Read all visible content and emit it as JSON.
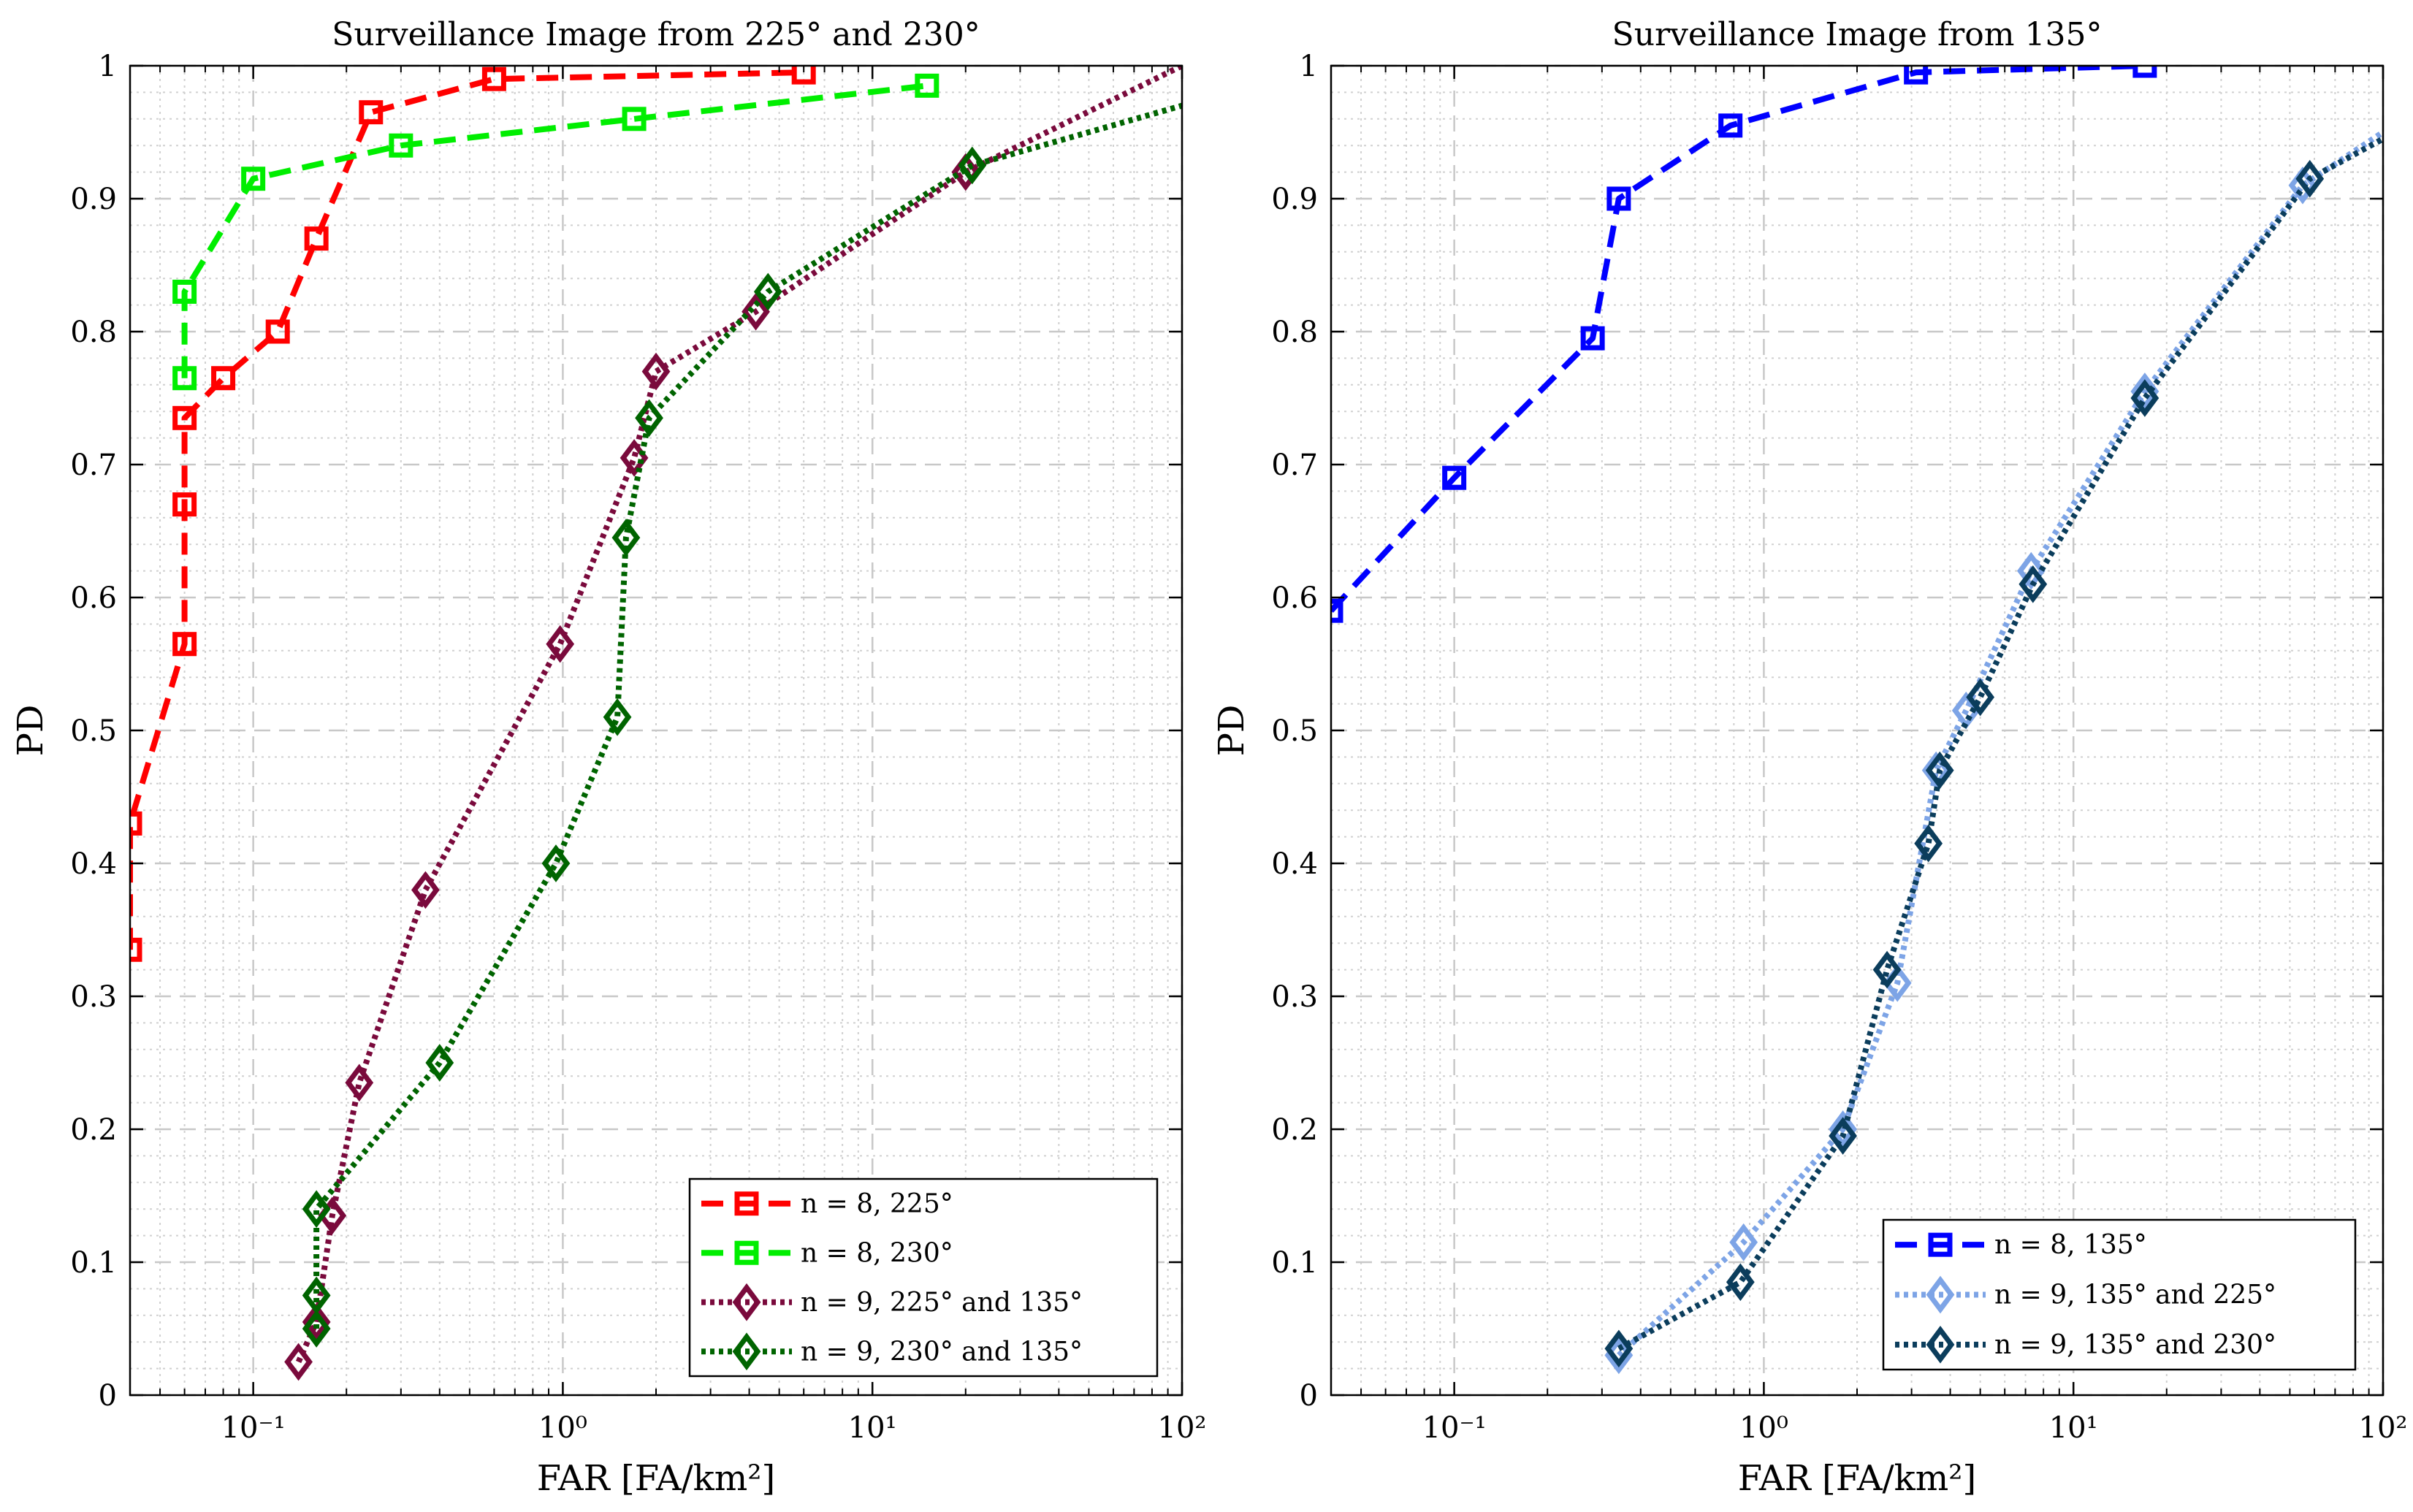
{
  "chart_data": [
    {
      "type": "line",
      "title": "Surveillance Image from 225° and 230°",
      "xlabel": "FAR [FA/km²]",
      "ylabel": "PD",
      "xscale": "log",
      "xlim": [
        0.04,
        100
      ],
      "ylim": [
        0,
        1
      ],
      "xticks": [
        {
          "value": 0.1,
          "label": "10⁻¹"
        },
        {
          "value": 1,
          "label": "10⁰"
        },
        {
          "value": 10,
          "label": "10¹"
        },
        {
          "value": 100,
          "label": "10²"
        }
      ],
      "yticks": [
        {
          "value": 0,
          "label": "0"
        },
        {
          "value": 0.1,
          "label": "0.1"
        },
        {
          "value": 0.2,
          "label": "0.2"
        },
        {
          "value": 0.3,
          "label": "0.3"
        },
        {
          "value": 0.4,
          "label": "0.4"
        },
        {
          "value": 0.5,
          "label": "0.5"
        },
        {
          "value": 0.6,
          "label": "0.6"
        },
        {
          "value": 0.7,
          "label": "0.7"
        },
        {
          "value": 0.8,
          "label": "0.8"
        },
        {
          "value": 0.9,
          "label": "0.9"
        },
        {
          "value": 1,
          "label": "1"
        }
      ],
      "grid": true,
      "legend_position": "bottom-right",
      "series": [
        {
          "name": "n = 8, 225°",
          "color": "#ff0000",
          "dash": "dashed",
          "marker": "square",
          "x": [
            0.04,
            0.04,
            0.06,
            0.06,
            0.06,
            0.08,
            0.12,
            0.16,
            0.24,
            0.6,
            6
          ],
          "y": [
            0.335,
            0.43,
            0.565,
            0.67,
            0.735,
            0.765,
            0.8,
            0.87,
            0.965,
            0.99,
            0.995
          ]
        },
        {
          "name": "n = 8, 230°",
          "color": "#00ee00",
          "dash": "dashed",
          "marker": "square",
          "x": [
            0.06,
            0.06,
            0.1,
            0.3,
            1.7,
            15
          ],
          "y": [
            0.765,
            0.83,
            0.915,
            0.94,
            0.96,
            0.985
          ]
        },
        {
          "name": "n = 9, 225° and 135°",
          "color": "#7a0a3c",
          "dash": "dotted",
          "marker": "diamond",
          "x": [
            0.14,
            0.16,
            0.18,
            0.22,
            0.36,
            0.98,
            1.7,
            2,
            4.2,
            20,
            100
          ],
          "y": [
            0.025,
            0.055,
            0.135,
            0.235,
            0.38,
            0.565,
            0.705,
            0.77,
            0.815,
            0.92,
            1.0
          ]
        },
        {
          "name": "n = 9, 230° and 135°",
          "color": "#006400",
          "dash": "dotted",
          "marker": "diamond",
          "x": [
            0.16,
            0.16,
            0.16,
            0.4,
            0.95,
            1.5,
            1.6,
            1.9,
            4.6,
            21,
            100
          ],
          "y": [
            0.05,
            0.075,
            0.14,
            0.25,
            0.4,
            0.51,
            0.645,
            0.735,
            0.83,
            0.925,
            0.97
          ]
        }
      ]
    },
    {
      "type": "line",
      "title": "Surveillance Image from 135°",
      "xlabel": "FAR [FA/km²]",
      "ylabel": "PD",
      "xscale": "log",
      "xlim": [
        0.04,
        100
      ],
      "ylim": [
        0,
        1
      ],
      "xticks": [
        {
          "value": 0.1,
          "label": "10⁻¹"
        },
        {
          "value": 1,
          "label": "10⁰"
        },
        {
          "value": 10,
          "label": "10¹"
        },
        {
          "value": 100,
          "label": "10²"
        }
      ],
      "yticks": [
        {
          "value": 0,
          "label": "0"
        },
        {
          "value": 0.1,
          "label": "0.1"
        },
        {
          "value": 0.2,
          "label": "0.2"
        },
        {
          "value": 0.3,
          "label": "0.3"
        },
        {
          "value": 0.4,
          "label": "0.4"
        },
        {
          "value": 0.5,
          "label": "0.5"
        },
        {
          "value": 0.6,
          "label": "0.6"
        },
        {
          "value": 0.7,
          "label": "0.7"
        },
        {
          "value": 0.8,
          "label": "0.8"
        },
        {
          "value": 0.9,
          "label": "0.9"
        },
        {
          "value": 1,
          "label": "1"
        }
      ],
      "grid": true,
      "legend_position": "bottom-right",
      "series": [
        {
          "name": "n = 8, 135°",
          "color": "#0000ff",
          "dash": "dashed",
          "marker": "square",
          "x": [
            0.04,
            0.1,
            0.28,
            0.34,
            0.78,
            3.1,
            17
          ],
          "y": [
            0.59,
            0.69,
            0.795,
            0.9,
            0.955,
            0.995,
            1.0
          ]
        },
        {
          "name": "n = 9, 135° and 225°",
          "color": "#7da4e6",
          "dash": "dotted",
          "marker": "diamond",
          "x": [
            0.34,
            0.86,
            1.8,
            2.7,
            3.6,
            4.5,
            7.3,
            17,
            55,
            100
          ],
          "y": [
            0.03,
            0.115,
            0.2,
            0.31,
            0.47,
            0.515,
            0.62,
            0.755,
            0.91,
            0.95
          ]
        },
        {
          "name": "n = 9, 135° and 230°",
          "color": "#0b3d5c",
          "dash": "dotted",
          "marker": "diamond",
          "x": [
            0.34,
            0.84,
            1.8,
            2.5,
            3.4,
            3.7,
            5.0,
            7.4,
            17,
            58,
            100
          ],
          "y": [
            0.035,
            0.085,
            0.195,
            0.32,
            0.415,
            0.47,
            0.525,
            0.61,
            0.75,
            0.915,
            0.945
          ]
        }
      ]
    }
  ]
}
